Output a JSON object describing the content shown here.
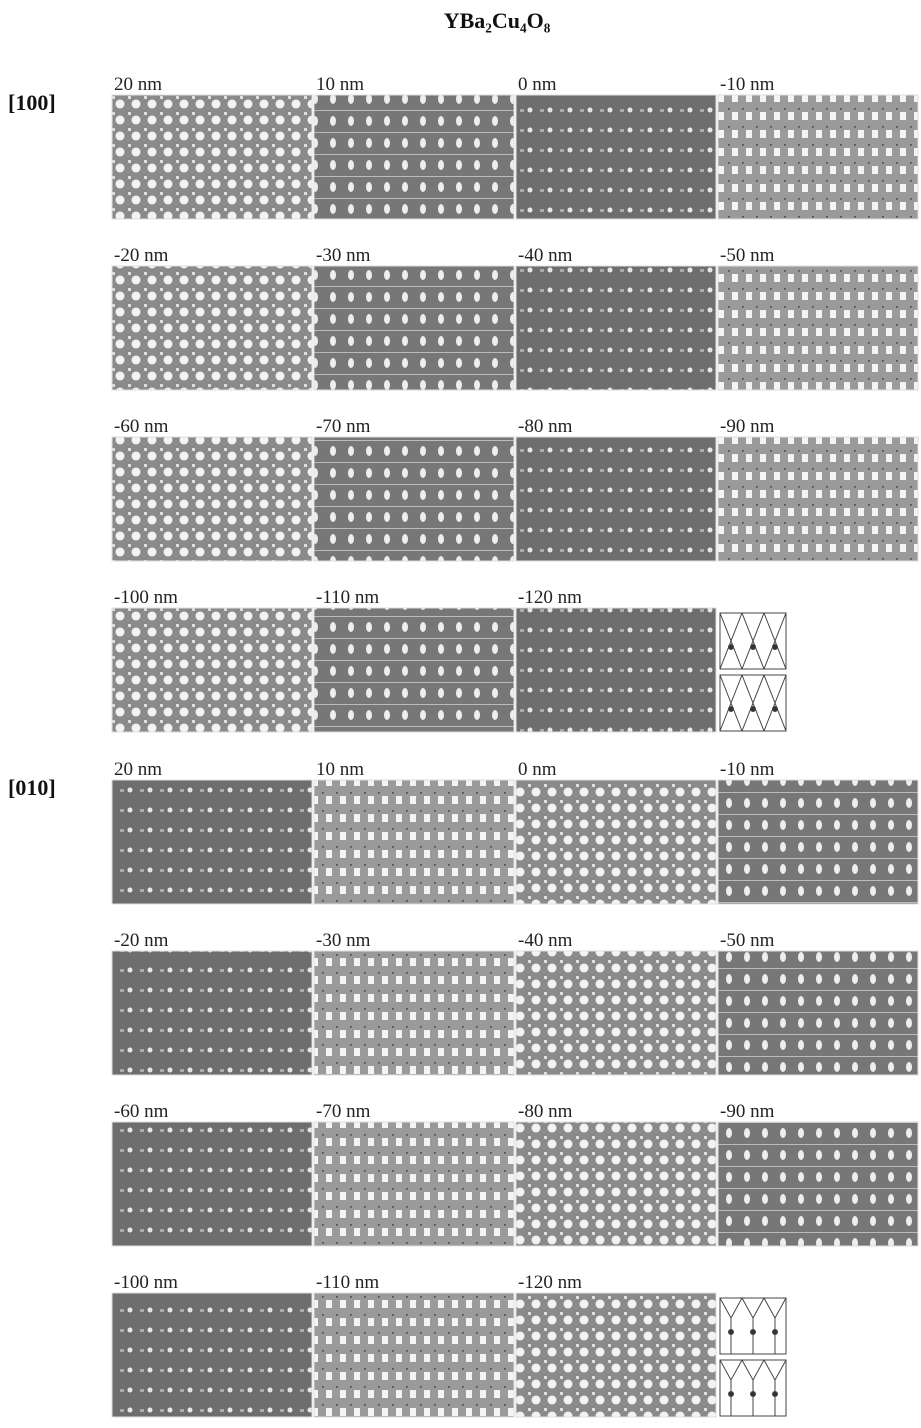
{
  "title": "YBa₂Cu₄O₈",
  "sections": [
    {
      "label": "[100]",
      "panels": [
        "20 nm",
        "10 nm",
        "0 nm",
        "-10 nm",
        "-20 nm",
        "-30 nm",
        "-40 nm",
        "-50 nm",
        "-60 nm",
        "-70 nm",
        "-80 nm",
        "-90 nm",
        "-100 nm",
        "-110 nm",
        "-120 nm"
      ]
    },
    {
      "label": "[010]",
      "panels": [
        "20 nm",
        "10 nm",
        "0 nm",
        "-10 nm",
        "-20 nm",
        "-30 nm",
        "-40 nm",
        "-50 nm",
        "-60 nm",
        "-70 nm",
        "-80 nm",
        "-90 nm",
        "-100 nm",
        "-110 nm",
        "-120 nm"
      ]
    }
  ]
}
